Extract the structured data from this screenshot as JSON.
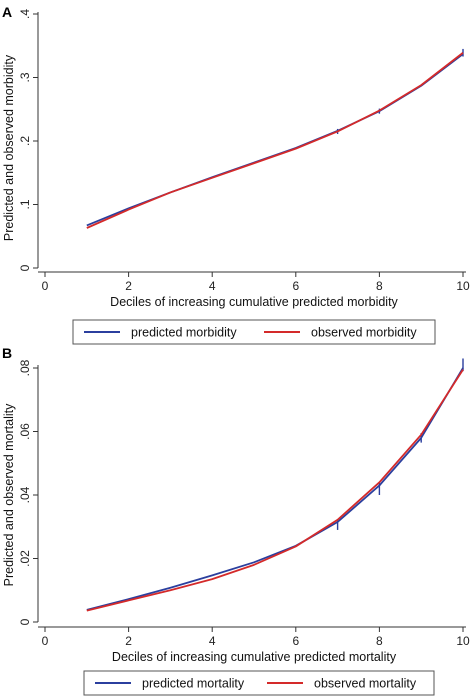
{
  "chart_data": [
    {
      "type": "line",
      "panel_label": "A",
      "xlabel": "Deciles of increasing cumulative predicted morbidity",
      "ylabel": "Predicted and observed morbidity",
      "xlim": [
        0,
        10
      ],
      "ylim": [
        0,
        0.4
      ],
      "x_ticks": [
        0,
        2,
        4,
        6,
        8,
        10
      ],
      "x_tick_labels": [
        "0",
        "2",
        "4",
        "6",
        "8",
        "10"
      ],
      "y_ticks": [
        0,
        0.1,
        0.2,
        0.3,
        0.4
      ],
      "y_tick_labels": [
        "0",
        ".1",
        ".2",
        ".3",
        ".4"
      ],
      "x": [
        1,
        2,
        3,
        4,
        5,
        6,
        7,
        8,
        9,
        10
      ],
      "series": [
        {
          "name": "predicted morbidity",
          "color": "#2b3f9e",
          "values": [
            0.067,
            0.094,
            0.119,
            0.143,
            0.166,
            0.189,
            0.216,
            0.247,
            0.287,
            0.337
          ]
        },
        {
          "name": "observed morbidity",
          "color": "#d42a2a",
          "values": [
            0.063,
            0.092,
            0.119,
            0.142,
            0.165,
            0.188,
            0.215,
            0.248,
            0.288,
            0.339
          ]
        }
      ],
      "error_bars": {
        "x": [
          7,
          8,
          10
        ],
        "low": [
          0.211,
          0.243,
          0.333
        ],
        "high": [
          0.219,
          0.251,
          0.345
        ]
      },
      "grid": false,
      "legend_position": "bottom"
    },
    {
      "type": "line",
      "panel_label": "B",
      "xlabel": "Deciles of increasing cumulative predicted mortality",
      "ylabel": "Predicted and observed mortality",
      "xlim": [
        0,
        10
      ],
      "ylim": [
        0,
        0.08
      ],
      "x_ticks": [
        0,
        2,
        4,
        6,
        8,
        10
      ],
      "x_tick_labels": [
        "0",
        "2",
        "4",
        "6",
        "8",
        "10"
      ],
      "y_ticks": [
        0,
        0.02,
        0.04,
        0.06,
        0.08
      ],
      "y_tick_labels": [
        "0",
        ".02",
        ".04",
        ".06",
        ".08"
      ],
      "x": [
        1,
        2,
        3,
        4,
        5,
        6,
        7,
        8,
        9,
        10
      ],
      "series": [
        {
          "name": "predicted mortality",
          "color": "#2b3f9e",
          "values": [
            0.0038,
            0.0072,
            0.0108,
            0.0147,
            0.0188,
            0.024,
            0.0315,
            0.043,
            0.058,
            0.08
          ]
        },
        {
          "name": "observed mortality",
          "color": "#d42a2a",
          "values": [
            0.0036,
            0.0068,
            0.01,
            0.0135,
            0.018,
            0.0238,
            0.0322,
            0.044,
            0.059,
            0.0795
          ]
        }
      ],
      "error_bars": {
        "x": [
          7,
          8,
          9,
          10
        ],
        "low": [
          0.029,
          0.04,
          0.0565,
          0.079
        ],
        "high": [
          0.032,
          0.044,
          0.0595,
          0.083
        ]
      },
      "grid": false,
      "legend_position": "bottom"
    }
  ]
}
